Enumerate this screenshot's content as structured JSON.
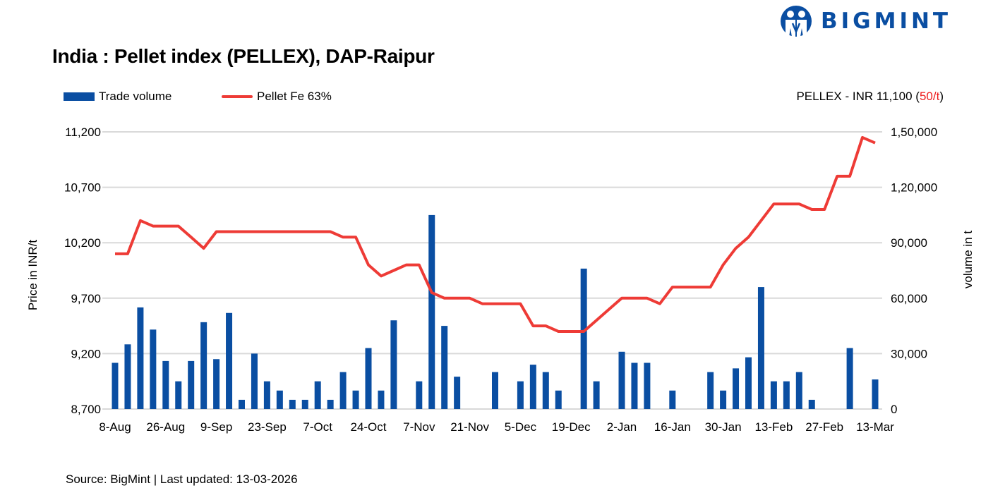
{
  "brand": {
    "name": "BIGMINT",
    "color": "#0a4ea2"
  },
  "chart_data": {
    "type": "bar+line",
    "title": "India : Pellet index (PELLEX), DAP-Raipur",
    "index_note": {
      "prefix": "PELLEX - INR 11,100 (",
      "change": "50/t",
      "suffix": ")"
    },
    "source": "Source: BigMint | Last updated: 13-03-2026",
    "ylabel_left": "Price in INR/t",
    "ylabel_right": "volume in t",
    "ylim_left": [
      8700,
      11200
    ],
    "ylim_right": [
      0,
      150000
    ],
    "left_ticks": [
      "8,700",
      "9,200",
      "9,700",
      "10,200",
      "10,700",
      "11,200"
    ],
    "right_ticks": [
      "0",
      "30,000",
      "60,000",
      "90,000",
      "1,20,000",
      "1,50,000"
    ],
    "x_tick_labels": [
      "8-Aug",
      "26-Aug",
      "9-Sep",
      "23-Sep",
      "7-Oct",
      "24-Oct",
      "7-Nov",
      "21-Nov",
      "5-Dec",
      "19-Dec",
      "2-Jan",
      "16-Jan",
      "30-Jan",
      "13-Feb",
      "27-Feb",
      "13-Mar"
    ],
    "grid": true,
    "legend_placement": "top-left",
    "series": [
      {
        "name": "Trade volume",
        "type": "bar",
        "axis": "right",
        "color": "#0a4ea2",
        "values": [
          25000,
          35000,
          55000,
          43000,
          26000,
          15000,
          26000,
          47000,
          27000,
          52000,
          5000,
          30000,
          15000,
          10000,
          5000,
          5000,
          15000,
          5000,
          20000,
          10000,
          33000,
          10000,
          48000,
          0,
          15000,
          105000,
          45000,
          17500,
          0,
          0,
          20000,
          0,
          15000,
          24000,
          20000,
          10000,
          0,
          76000,
          15000,
          0,
          31000,
          25000,
          25000,
          0,
          10000,
          0,
          0,
          20000,
          10000,
          22000,
          28000,
          66000,
          15000,
          15000,
          20000,
          5000,
          0,
          0,
          33000,
          0,
          16000
        ]
      },
      {
        "name": "Pellet Fe 63%",
        "type": "line",
        "axis": "left",
        "color": "#ee3b36",
        "values": [
          10100,
          10100,
          10400,
          10350,
          10350,
          10350,
          10250,
          10150,
          10300,
          10300,
          10300,
          10300,
          10300,
          10300,
          10300,
          10300,
          10300,
          10300,
          10250,
          10250,
          10000,
          9900,
          9950,
          10000,
          10000,
          9750,
          9700,
          9700,
          9700,
          9650,
          9650,
          9650,
          9650,
          9450,
          9450,
          9400,
          9400,
          9400,
          9500,
          9600,
          9700,
          9700,
          9700,
          9650,
          9800,
          9800,
          9800,
          9800,
          10000,
          10150,
          10250,
          10400,
          10550,
          10550,
          10550,
          10500,
          10500,
          10800,
          10800,
          11150,
          11100
        ]
      }
    ]
  }
}
